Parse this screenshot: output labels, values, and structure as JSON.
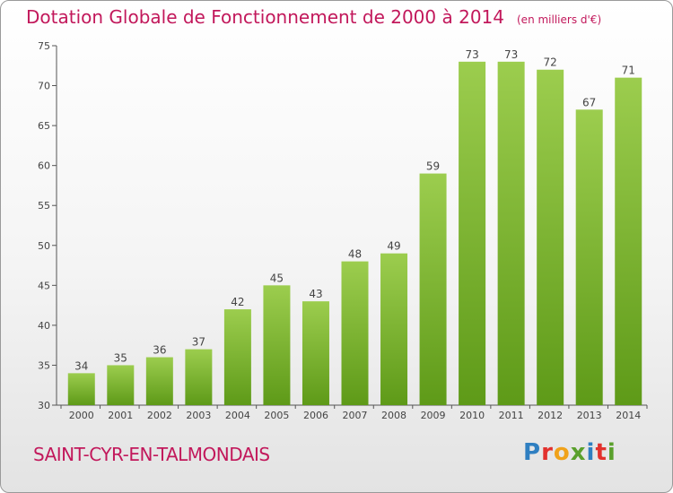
{
  "title": {
    "main": "Dotation Globale de Fonctionnement de 2000 à 2014",
    "unit": "(en milliers d'€)"
  },
  "commune": "SAINT-CYR-EN-TALMONDAIS",
  "logo": {
    "text": "Proxiti",
    "letter_colors": [
      "#2f7fc1",
      "#e2312d",
      "#f0a21a",
      "#5aa02c",
      "#2f7fc1",
      "#e2312d",
      "#5aa02c"
    ]
  },
  "colors": {
    "title": "#c2185b",
    "bar_top": "#9ccd4e",
    "bar_bottom": "#5e9a18",
    "axis": "#555555",
    "label": "#444444"
  },
  "chart_data": {
    "type": "bar",
    "title": "Dotation Globale de Fonctionnement de 2000 à 2014",
    "subtitle": "(en milliers d'€)",
    "categories": [
      "2000",
      "2001",
      "2002",
      "2003",
      "2004",
      "2005",
      "2006",
      "2007",
      "2008",
      "2009",
      "2010",
      "2011",
      "2012",
      "2013",
      "2014"
    ],
    "values": [
      34,
      35,
      36,
      37,
      42,
      45,
      43,
      48,
      49,
      59,
      73,
      73,
      72,
      67,
      71
    ],
    "ylim": [
      30,
      75
    ],
    "yticks": [
      30,
      35,
      40,
      45,
      50,
      55,
      60,
      65,
      70,
      75
    ],
    "grid": false,
    "data_labels": true
  }
}
